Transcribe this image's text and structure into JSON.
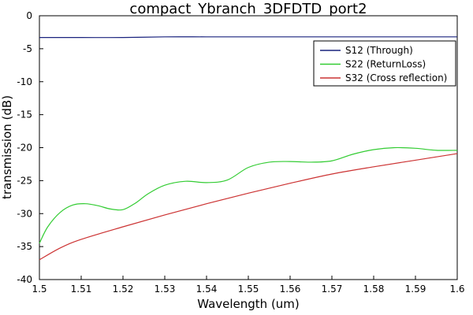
{
  "chart_data": {
    "type": "line",
    "title": "compact_Ybranch_3DFDTD_port2",
    "xlabel": "Wavelength (um)",
    "ylabel": "transmission (dB)",
    "xlim": [
      1.5,
      1.6
    ],
    "ylim": [
      -40,
      0
    ],
    "x_ticks": [
      1.5,
      1.51,
      1.52,
      1.53,
      1.54,
      1.55,
      1.56,
      1.57,
      1.58,
      1.59,
      1.6
    ],
    "x_tick_labels": [
      "1.5",
      "1.51",
      "1.52",
      "1.53",
      "1.54",
      "1.55",
      "1.56",
      "1.57",
      "1.58",
      "1.59",
      "1.6"
    ],
    "y_ticks": [
      0,
      -5,
      -10,
      -15,
      -20,
      -25,
      -30,
      -35,
      -40
    ],
    "y_tick_labels": [
      "0",
      "-5",
      "-10",
      "-15",
      "-20",
      "-25",
      "-30",
      "-35",
      "-40"
    ],
    "grid": false,
    "legend_position": "top-right",
    "series": [
      {
        "name": "S12 (Through)",
        "color": "#1a237e",
        "x": [
          1.5,
          1.51,
          1.52,
          1.53,
          1.54,
          1.55,
          1.56,
          1.57,
          1.58,
          1.59,
          1.6
        ],
        "y": [
          -3.3,
          -3.3,
          -3.3,
          -3.2,
          -3.2,
          -3.2,
          -3.2,
          -3.2,
          -3.2,
          -3.2,
          -3.2
        ]
      },
      {
        "name": "S22 (ReturnLoss)",
        "color": "#33cc33",
        "x": [
          1.5,
          1.502,
          1.505,
          1.508,
          1.511,
          1.514,
          1.517,
          1.52,
          1.523,
          1.526,
          1.53,
          1.535,
          1.54,
          1.545,
          1.55,
          1.555,
          1.56,
          1.565,
          1.57,
          1.575,
          1.58,
          1.585,
          1.59,
          1.595,
          1.6
        ],
        "y": [
          -34.5,
          -32.0,
          -29.8,
          -28.7,
          -28.5,
          -28.8,
          -29.3,
          -29.4,
          -28.4,
          -27.0,
          -25.7,
          -25.1,
          -25.3,
          -24.9,
          -23.0,
          -22.2,
          -22.1,
          -22.2,
          -22.0,
          -21.0,
          -20.3,
          -20.0,
          -20.1,
          -20.4,
          -20.4
        ]
      },
      {
        "name": "S32 (Cross reflection)",
        "color": "#cc3333",
        "x": [
          1.5,
          1.505,
          1.51,
          1.52,
          1.53,
          1.54,
          1.55,
          1.56,
          1.57,
          1.58,
          1.59,
          1.6
        ],
        "y": [
          -37.0,
          -35.2,
          -33.9,
          -32.0,
          -30.2,
          -28.5,
          -26.9,
          -25.4,
          -24.0,
          -22.9,
          -21.9,
          -20.9
        ]
      }
    ]
  }
}
